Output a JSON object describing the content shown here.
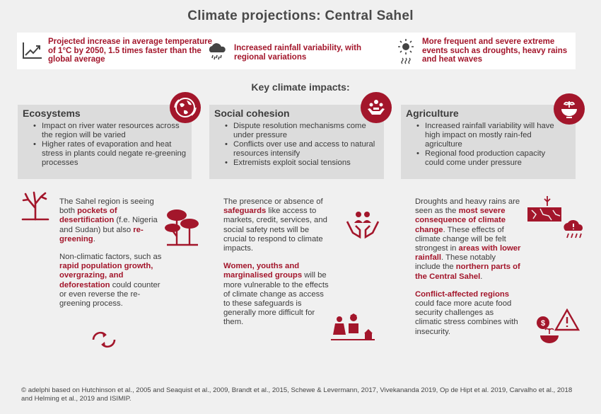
{
  "title": "Climate projections: Central Sahel",
  "top": [
    {
      "icon": "trend-chart-icon",
      "text": "Projected increase in average temperature of 1°C by 2050, 1.5 times faster than the global average"
    },
    {
      "icon": "rain-cloud-icon",
      "text": "Increased rainfall variability, with regional variations"
    },
    {
      "icon": "sun-heat-icon",
      "text": "More frequent and severe extreme events such as droughts, heavy rains and heat waves"
    }
  ],
  "subheading": "Key climate impacts:",
  "panels": [
    {
      "title": "Ecosystems",
      "icon": "ecosystem-globe-icon",
      "bullets": [
        "Impact on river water resources across the region will be varied",
        "Higher rates of evaporation and heat stress in plants could negate re-greening processes"
      ]
    },
    {
      "title": "Social cohesion",
      "icon": "handshake-icon",
      "bullets": [
        "Dispute resolution mechanisms come under pressure",
        "Conflicts over use and access to natural resources intensify",
        "Extremists exploit social tensions"
      ]
    },
    {
      "title": "Agriculture",
      "icon": "crop-bowl-icon",
      "bullets": [
        "Increased rainfall variability will have high impact on mostly rain-fed agriculture",
        "Regional food production capacity could come under pressure"
      ]
    }
  ],
  "col1": {
    "p1": {
      "a": "The Sahel region is seeing both ",
      "b": "pockets of desertification",
      "c": " (f.e. Nigeria and Sudan) but also ",
      "d": "re-greening",
      "e": "."
    },
    "p2": {
      "a": "Non-climatic factors, such as ",
      "b": "rapid population growth, overgrazing, and deforestation",
      "c": " could counter or even reverse the re-greening process."
    }
  },
  "col2": {
    "p1": {
      "a": "The presence or absence of ",
      "b": "safeguards",
      "c": " like access to markets, credit, services, and social safety nets will be crucial to respond to climate impacts."
    },
    "p2": {
      "b": "Women, youths and marginalised groups",
      "c": " will be more vulnerable to the effects of climate change as access to these safeguards is generally more difficult for them."
    }
  },
  "col3": {
    "p1": {
      "a": "Droughts and heavy rains are seen as the ",
      "b": "most severe consequence of climate change",
      "c": ". These effects of climate change will be felt strongest in ",
      "d": "areas with lower rainfall",
      "e": ". These notably include the ",
      "f": "northern parts of the Central Sahel",
      "g": "."
    },
    "p2": {
      "b": "Conflict-affected regions",
      "c": " could face more acute food security challenges as climatic stress combines with insecurity."
    }
  },
  "footer": "© adelphi based on Hutchinson et al., 2005 and Seaquist et al., 2009, Brandt et al., 2015, Schewe & Levermann, 2017, Vivekananda 2019, Op de Hipt et al. 2019, Carvalho et al., 2018 and Helming et al., 2019 and ISIMIP.",
  "colors": {
    "accent": "#a3162b",
    "panel": "#dcdcdc",
    "background": "#f0f0f0"
  }
}
